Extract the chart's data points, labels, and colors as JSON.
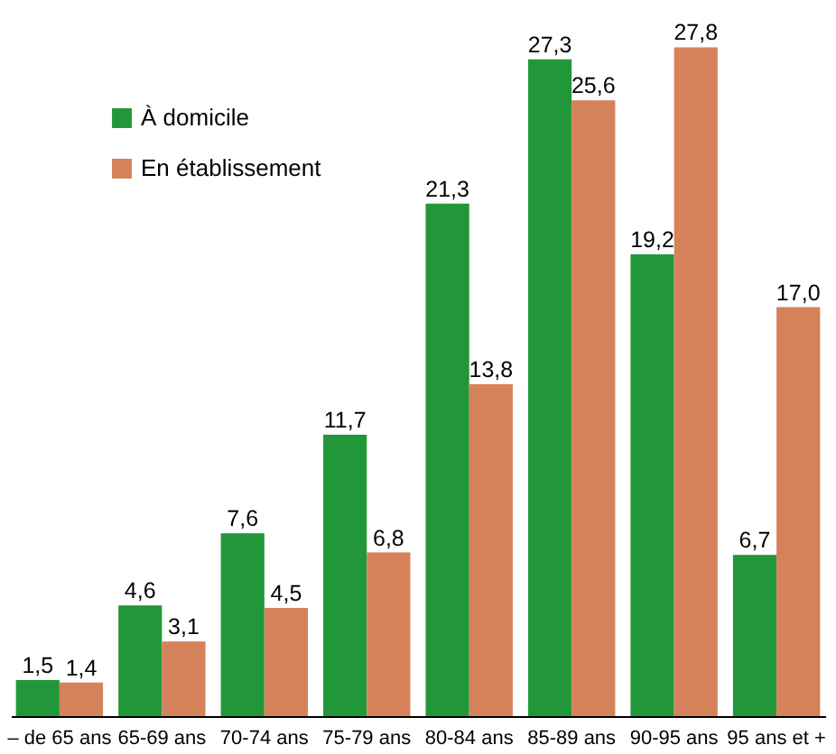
{
  "chart_data": {
    "type": "bar",
    "categories": [
      "– de 65 ans",
      "65-69 ans",
      "70-74 ans",
      "75-79 ans",
      "80-84 ans",
      "85-89 ans",
      "90-95 ans",
      "95 ans et +"
    ],
    "series": [
      {
        "name": "À domicile",
        "color": "#22973a",
        "values": [
          1.5,
          4.6,
          7.6,
          11.7,
          21.3,
          27.3,
          19.2,
          6.7
        ],
        "value_labels": [
          "1,5",
          "4,6",
          "7,6",
          "11,7",
          "21,3",
          "27,3",
          "19,2",
          "6,7"
        ]
      },
      {
        "name": "En établissement",
        "color": "#d5825a",
        "values": [
          1.4,
          3.1,
          4.5,
          6.8,
          13.8,
          25.6,
          27.8,
          17.0
        ],
        "value_labels": [
          "1,4",
          "3,1",
          "4,5",
          "6,8",
          "13,8",
          "25,6",
          "27,8",
          "17,0"
        ]
      }
    ],
    "legend": "top left",
    "grid": false
  }
}
